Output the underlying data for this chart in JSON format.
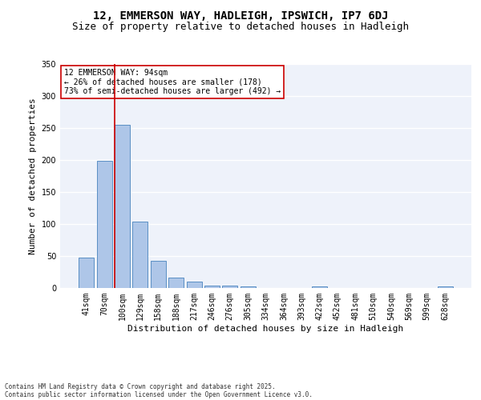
{
  "title1": "12, EMMERSON WAY, HADLEIGH, IPSWICH, IP7 6DJ",
  "title2": "Size of property relative to detached houses in Hadleigh",
  "xlabel": "Distribution of detached houses by size in Hadleigh",
  "ylabel": "Number of detached properties",
  "categories": [
    "41sqm",
    "70sqm",
    "100sqm",
    "129sqm",
    "158sqm",
    "188sqm",
    "217sqm",
    "246sqm",
    "276sqm",
    "305sqm",
    "334sqm",
    "364sqm",
    "393sqm",
    "422sqm",
    "452sqm",
    "481sqm",
    "510sqm",
    "540sqm",
    "569sqm",
    "599sqm",
    "628sqm"
  ],
  "values": [
    48,
    199,
    255,
    104,
    42,
    16,
    10,
    4,
    4,
    3,
    0,
    0,
    0,
    2,
    0,
    0,
    0,
    0,
    0,
    0,
    2
  ],
  "bar_color": "#aec6e8",
  "bar_edge_color": "#5a8fc4",
  "property_line_color": "#cc0000",
  "annotation_text": "12 EMMERSON WAY: 94sqm\n← 26% of detached houses are smaller (178)\n73% of semi-detached houses are larger (492) →",
  "annotation_box_color": "#ffffff",
  "annotation_box_edge_color": "#cc0000",
  "ylim": [
    0,
    350
  ],
  "yticks": [
    0,
    50,
    100,
    150,
    200,
    250,
    300,
    350
  ],
  "background_color": "#eef2fa",
  "grid_color": "#ffffff",
  "footer_line1": "Contains HM Land Registry data © Crown copyright and database right 2025.",
  "footer_line2": "Contains public sector information licensed under the Open Government Licence v3.0.",
  "title_fontsize": 10,
  "subtitle_fontsize": 9,
  "tick_fontsize": 7,
  "ylabel_fontsize": 8,
  "xlabel_fontsize": 8,
  "annotation_fontsize": 7,
  "footer_fontsize": 5.5
}
